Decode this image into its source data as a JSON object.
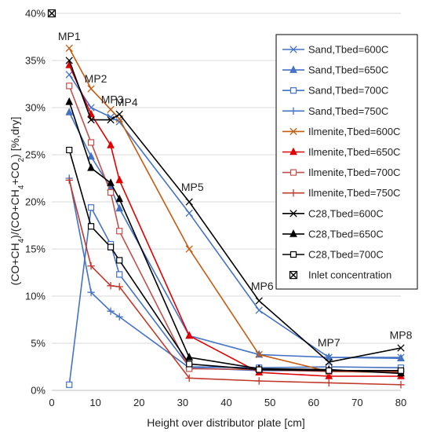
{
  "chart_data": {
    "type": "line",
    "xlabel": "Height over distributor plate [cm]",
    "ylabel_parts": {
      "p1": "(CO+CH",
      "s1": "4",
      "p2": ")/(CO+CH",
      "s2": "4",
      "p3": "+CO",
      "s3": "2",
      "p4": ") [%,dry]"
    },
    "xlim": [
      0,
      80
    ],
    "ylim": [
      0,
      40
    ],
    "x_ticks": [
      0,
      10,
      20,
      30,
      40,
      50,
      60,
      70,
      80
    ],
    "y_ticks": [
      0,
      5,
      10,
      15,
      20,
      25,
      30,
      35,
      40
    ],
    "y_tick_suffix": "%",
    "grid": "horizontal",
    "legend_position": "right",
    "measuring_points": [
      {
        "label": "MP1",
        "x": 4
      },
      {
        "label": "MP2",
        "x": 9
      },
      {
        "label": "MP3",
        "x": 13.5
      },
      {
        "label": "MP4",
        "x": 15.5
      },
      {
        "label": "MP5",
        "x": 31.5
      },
      {
        "label": "MP6",
        "x": 47.5
      },
      {
        "label": "MP7",
        "x": 63.5
      },
      {
        "label": "MP8",
        "x": 80
      }
    ],
    "series": [
      {
        "name": "Sand,Tbed=600C",
        "color": "#4472C4",
        "marker": "x",
        "x": [
          4,
          9,
          13.5,
          15.5,
          31.5,
          47.5,
          63.5,
          80
        ],
        "y": [
          33.5,
          30.0,
          29.0,
          28.5,
          18.8,
          8.5,
          3.5,
          3.5
        ]
      },
      {
        "name": "Sand,Tbed=650C",
        "color": "#4472C4",
        "marker": "triangle",
        "x": [
          4,
          9,
          13.5,
          15.5,
          31.5,
          47.5,
          63.5,
          80
        ],
        "y": [
          29.5,
          24.8,
          21.5,
          19.3,
          5.8,
          3.8,
          3.5,
          3.4
        ]
      },
      {
        "name": "Sand,Tbed=700C",
        "color": "#4472C4",
        "marker": "square-open",
        "x": [
          4,
          9,
          13.5,
          15.5,
          31.5,
          47.5,
          63.5,
          80
        ],
        "y": [
          0.6,
          19.4,
          15.5,
          12.3,
          2.5,
          2.4,
          2.5,
          2.4
        ]
      },
      {
        "name": "Sand,Tbed=750C",
        "color": "#4472C4",
        "marker": "plus",
        "x": [
          4,
          9,
          13.5,
          15.5,
          31.5,
          47.5,
          63.5,
          80
        ],
        "y": [
          22.5,
          10.4,
          8.4,
          7.8,
          2.4,
          2.1,
          2.1,
          2.0
        ]
      },
      {
        "name": "Ilmenite,Tbed=600C",
        "color": "#C55A11",
        "marker": "x",
        "x": [
          4,
          9,
          13.5,
          15.5,
          31.5,
          47.5,
          63.5,
          80
        ],
        "y": [
          36.3,
          32.0,
          29.8,
          28.8,
          15.0,
          3.8,
          2.0,
          1.9
        ]
      },
      {
        "name": "Ilmenite,Tbed=650C",
        "color": "#E00000",
        "marker": "triangle",
        "x": [
          4,
          9,
          13.5,
          15.5,
          31.5,
          47.5,
          63.5,
          80
        ],
        "y": [
          34.5,
          29.3,
          26.0,
          22.3,
          5.8,
          1.9,
          1.5,
          1.5
        ]
      },
      {
        "name": "Ilmenite,Tbed=700C",
        "color": "#C0504D",
        "marker": "square-open",
        "x": [
          4,
          9,
          13.5,
          15.5,
          31.5,
          47.5,
          63.5,
          80
        ],
        "y": [
          32.3,
          26.3,
          21.0,
          16.9,
          2.3,
          2.2,
          2.0,
          2.0
        ]
      },
      {
        "name": "Ilmenite,Tbed=750C",
        "color": "#C0392B",
        "marker": "plus",
        "x": [
          4,
          9,
          13.5,
          15.5,
          31.5,
          47.5,
          63.5,
          80
        ],
        "y": [
          22.3,
          13.2,
          11.1,
          11.0,
          1.3,
          1.0,
          0.8,
          0.6
        ]
      },
      {
        "name": "C28,Tbed=600C",
        "color": "#000000",
        "marker": "x",
        "x": [
          4,
          9,
          13.5,
          15.5,
          31.5,
          47.5,
          63.5,
          80
        ],
        "y": [
          35.0,
          28.7,
          28.7,
          29.3,
          20.0,
          9.5,
          3.0,
          4.5
        ]
      },
      {
        "name": "C28,Tbed=650C",
        "color": "#000000",
        "marker": "triangle",
        "x": [
          4,
          9,
          13.5,
          15.5,
          31.5,
          47.5,
          63.5,
          80
        ],
        "y": [
          30.6,
          23.6,
          22.0,
          20.3,
          3.5,
          2.3,
          2.2,
          1.8
        ]
      },
      {
        "name": "C28,Tbed=700C",
        "color": "#000000",
        "marker": "square-open",
        "x": [
          4,
          9,
          13.5,
          15.5,
          31.5,
          47.5,
          63.5,
          80
        ],
        "y": [
          25.5,
          17.4,
          15.2,
          13.8,
          2.8,
          2.2,
          2.1,
          2.1
        ]
      }
    ],
    "inlet": {
      "name": "Inlet concentration",
      "x": [
        0
      ],
      "y": [
        40
      ]
    }
  }
}
